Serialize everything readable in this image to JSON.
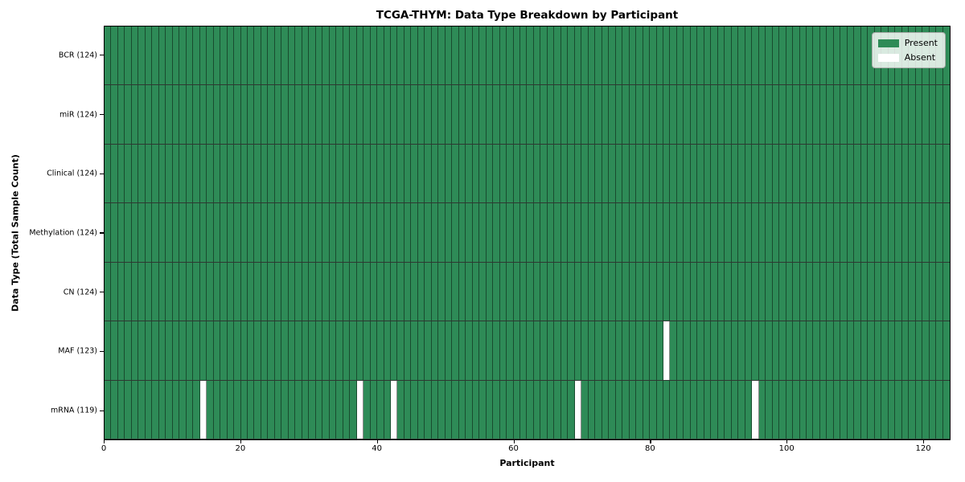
{
  "title": "TCGA-THYM: Data Type Breakdown by Participant",
  "xlabel": "Participant",
  "ylabel": "Data Type (Total Sample Count)",
  "legend": {
    "position": "upper-right",
    "items": [
      {
        "label": "Present",
        "color": "#2e8b57"
      },
      {
        "label": "Absent",
        "color": "#ffffff"
      }
    ]
  },
  "chart_data": {
    "type": "heatmap",
    "n_participants": 124,
    "x_ticks": [
      0,
      20,
      40,
      60,
      80,
      100,
      120
    ],
    "x_range": [
      0,
      124
    ],
    "grid": "cell-edges",
    "rows": [
      {
        "label": "BCR (124)",
        "data_type": "BCR",
        "total_sample_count": 124,
        "absent_participants": []
      },
      {
        "label": "miR (124)",
        "data_type": "miR",
        "total_sample_count": 124,
        "absent_participants": []
      },
      {
        "label": "Clinical (124)",
        "data_type": "Clinical",
        "total_sample_count": 124,
        "absent_participants": []
      },
      {
        "label": "Methylation (124)",
        "data_type": "Methylation",
        "total_sample_count": 124,
        "absent_participants": []
      },
      {
        "label": "CN (124)",
        "data_type": "CN",
        "total_sample_count": 124,
        "absent_participants": []
      },
      {
        "label": "MAF (123)",
        "data_type": "MAF",
        "total_sample_count": 123,
        "absent_participants": [
          82
        ]
      },
      {
        "label": "mRNA (119)",
        "data_type": "mRNA",
        "total_sample_count": 119,
        "absent_participants": [
          14,
          37,
          42,
          69,
          95
        ]
      }
    ],
    "colors": {
      "present": "#2e8b57",
      "absent": "#ffffff",
      "cell_edge": "rgba(0,0,0,0.45)",
      "row_divider": "rgba(10,20,14,0.85)",
      "spine": "#000000"
    }
  }
}
